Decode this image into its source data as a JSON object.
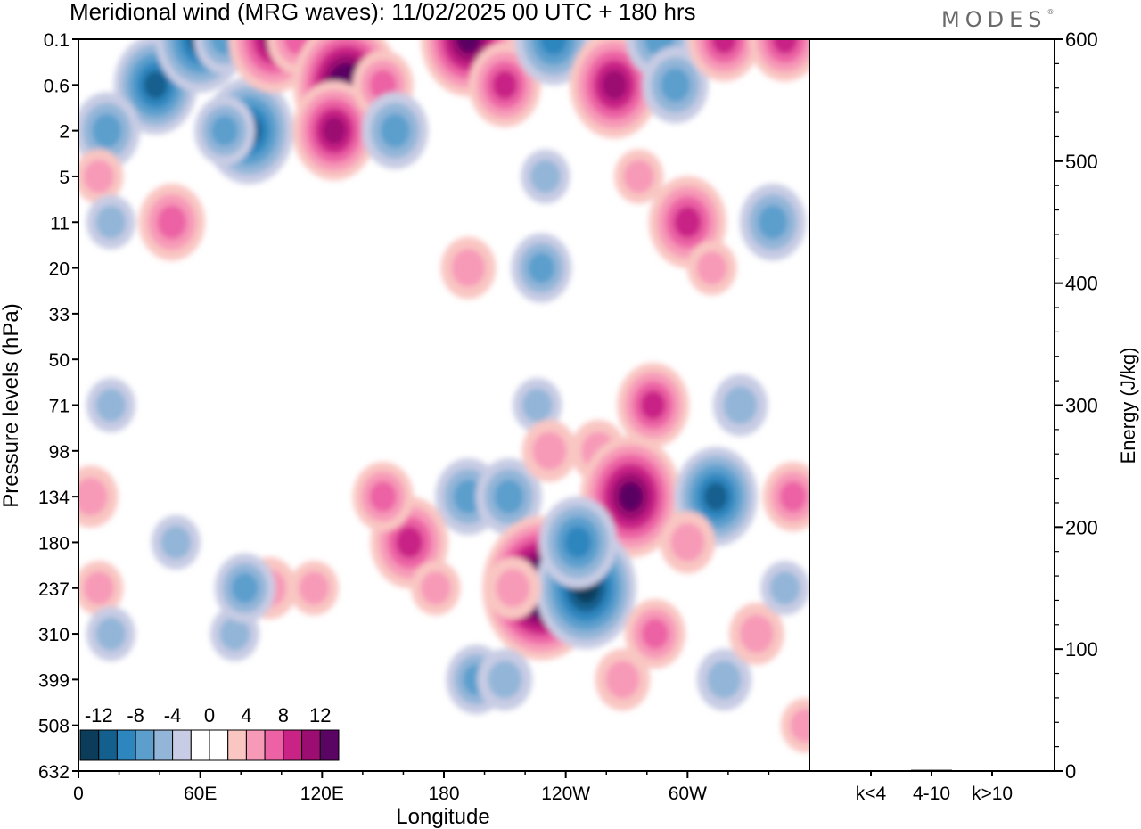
{
  "title": "Meridional wind (MRG waves):  11/02/2025  00 UTC  + 180 hrs",
  "brand": {
    "name": "MODES",
    "mark": "®"
  },
  "chart_data": [
    {
      "type": "heatmap",
      "title": "Meridional wind (MRG waves):  11/02/2025  00 UTC  + 180 hrs",
      "xlabel": "Longitude",
      "ylabel": "Pressure levels (hPa)",
      "x_ticks": [
        "0",
        "60E",
        "120E",
        "180",
        "120W",
        "60W"
      ],
      "x_tick_degrees": [
        0,
        60,
        120,
        180,
        240,
        300
      ],
      "xlim": [
        0,
        360
      ],
      "y_ticks": [
        "0.1",
        "0.6",
        "2",
        "5",
        "11",
        "20",
        "33",
        "50",
        "71",
        "98",
        "134",
        "180",
        "237",
        "310",
        "399",
        "508",
        "632"
      ],
      "colorbar": {
        "labels": [
          "-12",
          "-8",
          "-4",
          "0",
          "4",
          "8",
          "12"
        ],
        "colors": [
          "#0b3d5a",
          "#135f8e",
          "#2e86bf",
          "#5c9fcd",
          "#93b5d8",
          "#c8cce4",
          "#ffffff",
          "#ffffff",
          "#f9c6c2",
          "#f79ab8",
          "#ec62a4",
          "#c92386",
          "#9c0d72",
          "#5a0564"
        ]
      },
      "cells": [
        {
          "lon": 38,
          "level": "0.6",
          "value": -9
        },
        {
          "lon": 14,
          "level": "2",
          "value": -6
        },
        {
          "lon": 60,
          "level": "0.1",
          "value": -10
        },
        {
          "lon": 72,
          "level": "0.1",
          "value": -5
        },
        {
          "lon": 84,
          "level": "2",
          "value": -10
        },
        {
          "lon": 72,
          "level": "2",
          "value": -5
        },
        {
          "lon": 96,
          "level": "0.1",
          "value": 10
        },
        {
          "lon": 108,
          "level": "0.1",
          "value": 5
        },
        {
          "lon": 132,
          "level": "0.6",
          "value": 13
        },
        {
          "lon": 126,
          "level": "2",
          "value": 9
        },
        {
          "lon": 150,
          "level": "0.6",
          "value": 5
        },
        {
          "lon": 156,
          "level": "2",
          "value": -6
        },
        {
          "lon": 192,
          "level": "0.1",
          "value": 11
        },
        {
          "lon": 210,
          "level": "0.6",
          "value": 7
        },
        {
          "lon": 234,
          "level": "0.1",
          "value": -8
        },
        {
          "lon": 264,
          "level": "0.6",
          "value": 10
        },
        {
          "lon": 286,
          "level": "0.1",
          "value": -6
        },
        {
          "lon": 294,
          "level": "0.6",
          "value": -6
        },
        {
          "lon": 318,
          "level": "0.1",
          "value": 7
        },
        {
          "lon": 348,
          "level": "0.1",
          "value": 7
        },
        {
          "lon": 10,
          "level": "5",
          "value": 3
        },
        {
          "lon": 230,
          "level": "5",
          "value": -3
        },
        {
          "lon": 276,
          "level": "5",
          "value": 3
        },
        {
          "lon": 300,
          "level": "11",
          "value": 8
        },
        {
          "lon": 342,
          "level": "11",
          "value": -6
        },
        {
          "lon": 46,
          "level": "11",
          "value": 6
        },
        {
          "lon": 16,
          "level": "11",
          "value": -3
        },
        {
          "lon": 192,
          "level": "20",
          "value": 4
        },
        {
          "lon": 228,
          "level": "20",
          "value": -5
        },
        {
          "lon": 312,
          "level": "20",
          "value": 3
        },
        {
          "lon": 226,
          "level": "71",
          "value": -3
        },
        {
          "lon": 283,
          "level": "71",
          "value": 7
        },
        {
          "lon": 326,
          "level": "71",
          "value": -4
        },
        {
          "lon": 16,
          "level": "71",
          "value": -3
        },
        {
          "lon": 192,
          "level": "134",
          "value": -6
        },
        {
          "lon": 212,
          "level": "134",
          "value": -6
        },
        {
          "lon": 232,
          "level": "98",
          "value": 4
        },
        {
          "lon": 256,
          "level": "98",
          "value": 4
        },
        {
          "lon": 272,
          "level": "134",
          "value": 12
        },
        {
          "lon": 314,
          "level": "134",
          "value": -9
        },
        {
          "lon": 352,
          "level": "134",
          "value": 5
        },
        {
          "lon": 300,
          "level": "180",
          "value": 4
        },
        {
          "lon": 163,
          "level": "180",
          "value": 8
        },
        {
          "lon": 150,
          "level": "134",
          "value": 5
        },
        {
          "lon": 176,
          "level": "237",
          "value": 3
        },
        {
          "lon": 116,
          "level": "237",
          "value": 3
        },
        {
          "lon": 94,
          "level": "237",
          "value": 4
        },
        {
          "lon": 48,
          "level": "180",
          "value": -3
        },
        {
          "lon": 77,
          "level": "310",
          "value": -3
        },
        {
          "lon": 82,
          "level": "237",
          "value": -5
        },
        {
          "lon": 6,
          "level": "134",
          "value": 4
        },
        {
          "lon": 10,
          "level": "237",
          "value": 3
        },
        {
          "lon": 16,
          "level": "310",
          "value": -3
        },
        {
          "lon": 228,
          "level": "237",
          "value": 15
        },
        {
          "lon": 250,
          "level": "237",
          "value": -12
        },
        {
          "lon": 246,
          "level": "180",
          "value": -8
        },
        {
          "lon": 214,
          "level": "237",
          "value": 4
        },
        {
          "lon": 196,
          "level": "399",
          "value": -5
        },
        {
          "lon": 210,
          "level": "399",
          "value": -4
        },
        {
          "lon": 268,
          "level": "399",
          "value": 4
        },
        {
          "lon": 284,
          "level": "310",
          "value": 5
        },
        {
          "lon": 318,
          "level": "399",
          "value": -4
        },
        {
          "lon": 334,
          "level": "310",
          "value": 4
        },
        {
          "lon": 348,
          "level": "237",
          "value": -3
        },
        {
          "lon": 358,
          "level": "508",
          "value": 3
        }
      ]
    },
    {
      "type": "bar",
      "ylabel": "Energy (J/kg)",
      "categories": [
        "k<4",
        "4-10",
        "k>10"
      ],
      "values": [
        0.5,
        1,
        0.2
      ],
      "ylim": [
        0,
        600
      ],
      "y_ticks": [
        "0",
        "100",
        "200",
        "300",
        "400",
        "500",
        "600"
      ]
    }
  ]
}
